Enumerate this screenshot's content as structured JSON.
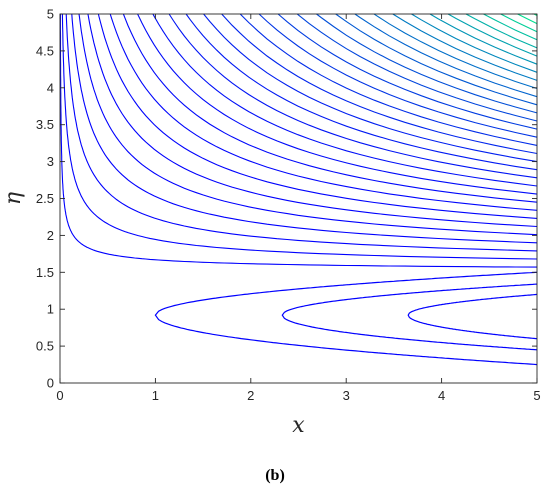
{
  "chart_data": {
    "type": "contour",
    "title": "",
    "xlabel": "x",
    "ylabel": "η",
    "xlim": [
      0,
      5
    ],
    "ylim": [
      0,
      5
    ],
    "xticks": [
      "0",
      "1",
      "2",
      "3",
      "4",
      "5"
    ],
    "yticks": [
      "0",
      "0.5",
      "1",
      "1.5",
      "2",
      "2.5",
      "3",
      "3.5",
      "4",
      "4.5",
      "5"
    ],
    "grid": false,
    "colormap": "winter",
    "colors": {
      "low": "#0000ff",
      "high": "#00ff80",
      "axis": "#262626"
    },
    "closed_contours": [
      {
        "vertex_x": 1.0,
        "center_y": 0.92,
        "y_at_x5": [
          0.25,
          1.5
        ]
      },
      {
        "vertex_x": 2.33,
        "center_y": 0.92,
        "y_at_x5": [
          0.45,
          1.34
        ]
      },
      {
        "vertex_x": 3.65,
        "center_y": 0.92,
        "y_at_x5": [
          0.6,
          1.2
        ]
      }
    ],
    "open_contours_y_at_x5": [
      1.57,
      1.68,
      1.79,
      1.9,
      2.01,
      2.12,
      2.23,
      2.34,
      2.45,
      2.56,
      2.67,
      2.78,
      2.89,
      3.0,
      3.11,
      3.22,
      3.33,
      3.44,
      3.55,
      3.66,
      3.77,
      3.88,
      3.99,
      4.1,
      4.21,
      4.32,
      4.43,
      4.54,
      4.65,
      4.76,
      4.87,
      4.98
    ]
  },
  "caption": {
    "label": "(b)"
  }
}
